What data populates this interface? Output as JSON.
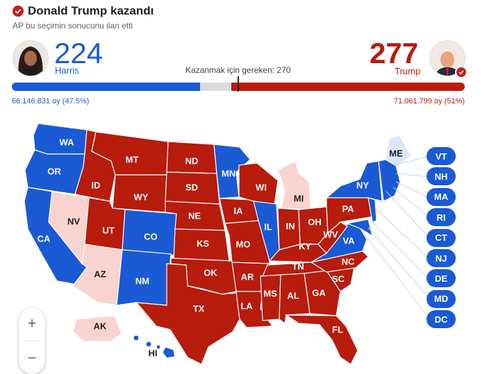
{
  "header": {
    "title": "Donald Trump kazandı",
    "subtitle": "AP bu seçimin sonucunu ilan etti"
  },
  "harris": {
    "electoral_votes": "224",
    "name": "Harris",
    "popular_vote": "66.146.831 oy (47.5%)"
  },
  "trump": {
    "electoral_votes": "277",
    "name": "Trump",
    "popular_vote": "71.061.799 oy (51%)"
  },
  "needed_label": "Kazanmak için gereken: 270",
  "colors": {
    "dem": "#1a5ad4",
    "rep": "#b71c0c",
    "dem_light": "#dbe6fb",
    "rep_light": "#f8d3cf",
    "undecided": "#dadce0"
  },
  "states": {
    "WA": "WA",
    "OR": "OR",
    "CA": "CA",
    "NV": "NV",
    "ID": "ID",
    "MT": "MT",
    "WY": "WY",
    "UT": "UT",
    "AZ": "AZ",
    "CO": "CO",
    "NM": "NM",
    "ND": "ND",
    "SD": "SD",
    "NE": "NE",
    "KS": "KS",
    "OK": "OK",
    "TX": "TX",
    "MN": "MN",
    "IA": "IA",
    "MO": "MO",
    "AR": "AR",
    "LA": "LA",
    "WI": "WI",
    "IL": "IL",
    "MI": "MI",
    "IN": "IN",
    "OH": "OH",
    "KY": "KY",
    "TN": "TN",
    "MS": "MS",
    "AL": "AL",
    "GA": "GA",
    "FL": "FL",
    "SC": "SC",
    "NC": "NC",
    "VA": "VA",
    "WV": "WV",
    "PA": "PA",
    "NY": "NY",
    "ME": "ME",
    "AK": "AK",
    "HI": "HI"
  },
  "east_badges": [
    "VT",
    "NH",
    "MA",
    "RI",
    "CT",
    "NJ",
    "DE",
    "MD",
    "DC"
  ],
  "zoom": {
    "plus": "+",
    "minus": "−"
  }
}
